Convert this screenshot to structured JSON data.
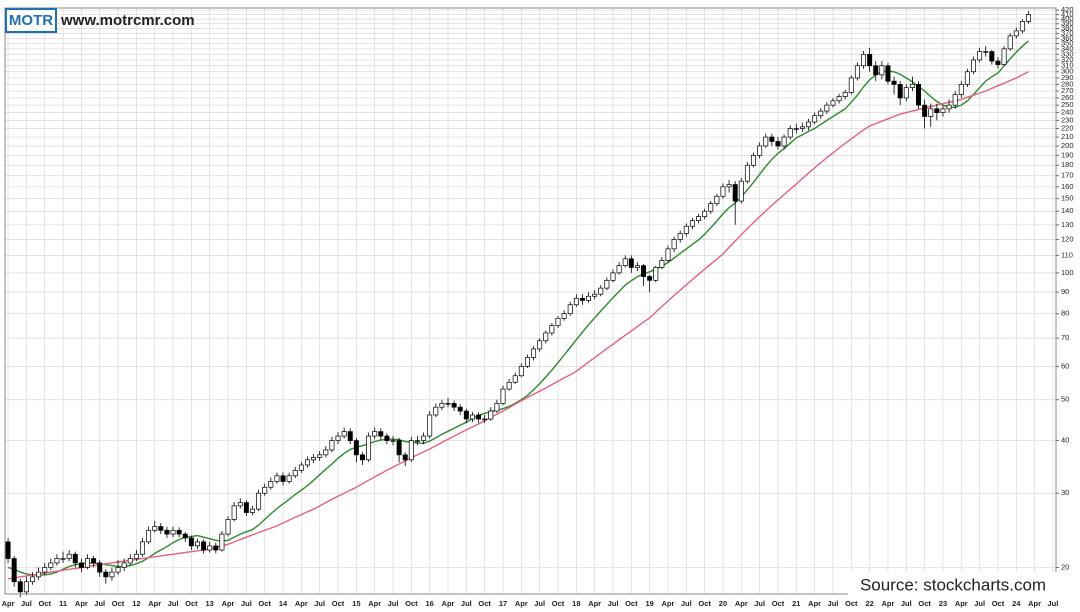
{
  "header": {
    "logo": "MOTR",
    "website": "www.motrcmr.com"
  },
  "source": "Source: stockcharts.com",
  "chart_data": {
    "type": "candlestick",
    "log_scale": true,
    "grid": true,
    "up_color": "#ffffff",
    "down_color": "#000000",
    "categories": [
      "Apr",
      null,
      null,
      "Jul",
      null,
      null,
      "Oct",
      null,
      null,
      "11",
      null,
      null,
      "Apr",
      null,
      null,
      "Jul",
      null,
      null,
      "Oct",
      null,
      null,
      "12",
      null,
      null,
      "Apr",
      null,
      null,
      "Jul",
      null,
      null,
      "Oct",
      null,
      null,
      "13",
      null,
      null,
      "Apr",
      null,
      null,
      "Jul",
      null,
      null,
      "Oct",
      null,
      null,
      "14",
      null,
      null,
      "Apr",
      null,
      null,
      "Jul",
      null,
      null,
      "Oct",
      null,
      null,
      "15",
      null,
      null,
      "Apr",
      null,
      null,
      "Jul",
      null,
      null,
      "Oct",
      null,
      null,
      "16",
      null,
      null,
      "Apr",
      null,
      null,
      "Jul",
      null,
      null,
      "Oct",
      null,
      null,
      "17",
      null,
      null,
      "Apr",
      null,
      null,
      "Jul",
      null,
      null,
      "Oct",
      null,
      null,
      "18",
      null,
      null,
      "Apr",
      null,
      null,
      "Jul",
      null,
      null,
      "Oct",
      null,
      null,
      "19",
      null,
      null,
      "Apr",
      null,
      null,
      "Jul",
      null,
      null,
      "Oct",
      null,
      null,
      "20",
      null,
      null,
      "Apr",
      null,
      null,
      "Jul",
      null,
      null,
      "Oct",
      null,
      null,
      "21",
      null,
      null,
      "Apr",
      null,
      null,
      "Jul",
      null,
      null,
      "Oct",
      null,
      null,
      "22",
      null,
      null,
      "Apr",
      null,
      null,
      "Jul",
      null,
      null,
      "Oct",
      null,
      null,
      "23",
      null,
      null,
      "Apr",
      null,
      null,
      "Jul",
      null,
      null,
      "Oct",
      null,
      null,
      "24",
      null,
      null,
      "Apr",
      null,
      null,
      "Jul"
    ],
    "open": [
      23,
      21,
      18.5,
      17.5,
      18.5,
      19,
      19.5,
      20,
      20.5,
      21,
      21,
      21.5,
      20.5,
      20,
      21,
      20.5,
      19.5,
      19,
      19.5,
      20,
      20.5,
      21,
      21.5,
      23,
      24.5,
      25,
      24.5,
      24,
      24.5,
      24,
      23.5,
      22.5,
      23,
      22,
      22.5,
      22,
      24,
      26,
      28,
      28.5,
      27,
      27.5,
      30,
      31,
      32,
      33,
      32,
      33,
      34,
      35,
      36,
      36.5,
      37,
      38,
      40,
      41,
      42,
      40,
      37,
      36,
      41,
      42,
      41,
      40,
      40,
      37,
      36,
      40,
      40,
      41,
      46,
      48,
      49,
      49,
      48,
      47,
      45,
      46,
      45,
      45,
      47,
      49,
      53,
      55,
      57,
      60,
      63,
      66,
      69,
      72,
      75,
      78,
      80,
      84,
      87,
      86,
      88,
      89,
      92,
      96,
      100,
      104,
      108,
      103,
      104,
      98,
      96,
      103,
      107,
      114,
      120,
      124,
      129,
      133,
      136,
      140,
      146,
      152,
      160,
      162,
      148,
      165,
      180,
      190,
      200,
      210,
      205,
      200,
      210,
      220,
      220,
      222,
      228,
      236,
      242,
      250,
      256,
      262,
      268,
      290,
      310,
      330,
      310,
      295,
      310,
      285,
      280,
      260,
      275,
      280,
      250,
      235,
      245,
      240,
      245,
      250,
      265,
      280,
      300,
      320,
      335,
      335,
      318,
      312,
      340,
      365,
      375,
      395,
      null,
      null,
      null,
      null
    ],
    "high": [
      23.5,
      21.3,
      18.8,
      19,
      19.5,
      20,
      20.5,
      21,
      21.5,
      21.8,
      22,
      21.8,
      21,
      21.5,
      21.3,
      20.8,
      19.8,
      20,
      20.8,
      21,
      21.5,
      22,
      23.5,
      25,
      25.8,
      25.5,
      25,
      25,
      24.9,
      24.3,
      23.8,
      23.4,
      23.3,
      23,
      22.9,
      24.4,
      26.5,
      28.6,
      29.2,
      28.9,
      28,
      30.6,
      31.6,
      32.7,
      33.6,
      33.6,
      33.6,
      34.6,
      35.6,
      36.7,
      37.2,
      37.8,
      38.8,
      40.8,
      41.9,
      43,
      42.8,
      40.6,
      37.6,
      41.8,
      43,
      42.8,
      41.6,
      41,
      40.6,
      37.5,
      40.8,
      41,
      41.8,
      47,
      49,
      50,
      50.5,
      49.8,
      48.8,
      47.6,
      46.8,
      46.7,
      46,
      48,
      50,
      54,
      56,
      58,
      61,
      64,
      67,
      70,
      73,
      76,
      79,
      81.5,
      85.5,
      89,
      89,
      90,
      91,
      93.5,
      97.5,
      102,
      106,
      110,
      110,
      106,
      105,
      99,
      104,
      109,
      116,
      122,
      126,
      131,
      135,
      138,
      142,
      148,
      154,
      163,
      166,
      165,
      168,
      183,
      193,
      204,
      214,
      214,
      210,
      213,
      224,
      226,
      227,
      232,
      240,
      246,
      254,
      260,
      266,
      272,
      294,
      316,
      336,
      342,
      318,
      318,
      315,
      292,
      285,
      280,
      292,
      285,
      258,
      252,
      252,
      250,
      258,
      270,
      285,
      305,
      326,
      342,
      345,
      338,
      325,
      345,
      370,
      382,
      400,
      418,
      null,
      null,
      null,
      null
    ],
    "low": [
      20.5,
      18,
      17,
      17.2,
      18.2,
      18.7,
      19.2,
      19.7,
      20.2,
      20.5,
      20.7,
      20,
      19.5,
      19.8,
      20,
      19,
      18.3,
      18.6,
      19.2,
      19.6,
      20.2,
      20.7,
      21.2,
      22.7,
      24.2,
      24,
      23.5,
      23.6,
      23.6,
      23,
      22,
      22.1,
      21.6,
      21.7,
      21.6,
      21.8,
      23.7,
      25.7,
      27.6,
      26.5,
      26.6,
      27.2,
      29.6,
      30.6,
      31.6,
      31.3,
      31.6,
      32.6,
      33.5,
      34.5,
      35.4,
      35.8,
      36.5,
      37.5,
      39.2,
      40.5,
      39.2,
      35.5,
      35,
      35.6,
      40.3,
      40.2,
      39.2,
      39,
      35.5,
      34.8,
      35.6,
      39,
      39.2,
      40.5,
      45.5,
      47.2,
      48,
      47,
      46,
      44,
      44.2,
      44,
      44,
      44.5,
      46.5,
      48.5,
      52.5,
      54.5,
      56.5,
      59.5,
      62,
      65,
      68,
      71,
      74,
      77,
      79,
      83,
      84,
      85,
      86.5,
      88,
      91,
      95,
      99,
      103,
      100,
      101,
      93,
      90,
      95,
      102,
      106,
      112,
      118,
      122,
      127,
      131,
      134,
      138,
      144,
      150,
      155,
      130,
      146,
      163,
      178,
      187,
      198,
      200,
      196,
      197,
      207,
      214,
      216,
      218,
      225,
      232,
      238,
      247,
      252,
      258,
      265,
      286,
      305,
      300,
      285,
      288,
      280,
      265,
      250,
      255,
      270,
      245,
      220,
      222,
      230,
      235,
      240,
      245,
      260,
      276,
      296,
      316,
      326,
      312,
      305,
      310,
      336,
      360,
      370,
      390,
      null,
      null,
      null,
      null
    ],
    "close": [
      21,
      18.5,
      17.5,
      18.5,
      19,
      19.5,
      20,
      20.5,
      21,
      21,
      21.5,
      20.5,
      20,
      21,
      20.5,
      19.5,
      19,
      19.5,
      20,
      20.5,
      21,
      21.5,
      23,
      24.5,
      25,
      24.5,
      24,
      24.5,
      24,
      23.5,
      22.5,
      23,
      22,
      22.5,
      22,
      24,
      26,
      28,
      28.5,
      27,
      27.5,
      30,
      31,
      32,
      33,
      32,
      33,
      34,
      35,
      36,
      36.5,
      37,
      38,
      40,
      41,
      42,
      40,
      37,
      36,
      41,
      42,
      41,
      40,
      40,
      37,
      36,
      40,
      40,
      41,
      46,
      48,
      49,
      49,
      48,
      47,
      45,
      46,
      45,
      45,
      47,
      49,
      53,
      55,
      57,
      60,
      63,
      66,
      69,
      72,
      75,
      78,
      80,
      84,
      87,
      86,
      88,
      89,
      92,
      96,
      100,
      104,
      108,
      103,
      104,
      98,
      96,
      103,
      107,
      114,
      120,
      124,
      129,
      133,
      136,
      140,
      146,
      152,
      160,
      162,
      148,
      165,
      180,
      190,
      200,
      210,
      205,
      200,
      210,
      220,
      220,
      222,
      228,
      236,
      242,
      250,
      256,
      262,
      268,
      290,
      310,
      330,
      310,
      295,
      310,
      285,
      280,
      260,
      275,
      280,
      250,
      235,
      245,
      240,
      245,
      250,
      265,
      280,
      300,
      320,
      335,
      335,
      318,
      312,
      340,
      365,
      375,
      395,
      410,
      null,
      null,
      null,
      null
    ],
    "lines": [
      {
        "color": "#2a8a2a",
        "values": [
          20,
          19.8,
          19.5,
          19.3,
          19.2,
          19.2,
          19.2,
          19.3,
          19.5,
          19.8,
          20.1,
          20.3,
          20.4,
          20.5,
          20.5,
          20.4,
          20.3,
          20.2,
          20.1,
          20.1,
          20.2,
          20.4,
          20.7,
          21.1,
          21.6,
          22,
          22.4,
          22.9,
          23.3,
          23.6,
          23.7,
          23.8,
          23.6,
          23.4,
          23.2,
          23.1,
          23.2,
          23.6,
          24,
          24.3,
          24.6,
          25.2,
          26,
          26.8,
          27.6,
          28.3,
          29,
          29.8,
          30.5,
          31.3,
          32.2,
          33.2,
          34.2,
          35.2,
          36.3,
          37.3,
          38.1,
          38.6,
          38.9,
          39.3,
          39.8,
          40.1,
          40.3,
          40.3,
          40.2,
          39.8,
          39.7,
          39.5,
          39.4,
          39.9,
          40.6,
          41.4,
          42.1,
          42.8,
          43.5,
          44.2,
          45.1,
          45.9,
          46.4,
          46.9,
          47.2,
          47.6,
          48.2,
          49,
          50,
          51.2,
          52.8,
          54.6,
          56.6,
          58.8,
          61.2,
          63.8,
          66.5,
          69.4,
          72.3,
          75.3,
          78.2,
          81.2,
          84.2,
          87.3,
          90.3,
          93.5,
          95.8,
          98,
          99.4,
          100.6,
          102,
          103.7,
          105.8,
          108.4,
          111.2,
          114,
          116.9,
          119.7,
          123.4,
          128,
          132.8,
          138,
          142.8,
          146.5,
          151.5,
          157.4,
          164,
          171.2,
          179,
          186,
          192.2,
          197,
          203,
          209,
          212.6,
          216.6,
          220,
          225,
          230,
          235,
          240,
          245,
          254,
          264,
          276,
          287,
          295,
          300,
          301,
          300,
          296,
          290,
          284,
          277,
          270,
          262,
          255,
          250,
          247,
          247,
          250,
          256,
          265,
          275,
          285,
          292,
          298,
          310,
          322,
          334,
          345,
          355,
          null,
          null,
          null,
          null
        ]
      },
      {
        "color": "#e8607e",
        "values": [
          18.8,
          18.9,
          19,
          19.1,
          19.2,
          19.3,
          19.4,
          19.5,
          19.6,
          19.7,
          19.8,
          19.9,
          20,
          20.1,
          20.2,
          20.3,
          20.4,
          20.5,
          20.6,
          20.7,
          20.8,
          20.9,
          21,
          21.1,
          21.2,
          21.3,
          21.4,
          21.5,
          21.6,
          21.7,
          21.8,
          21.9,
          22,
          22.1,
          22.3,
          22.5,
          22.7,
          23,
          23.3,
          23.6,
          23.9,
          24.2,
          24.5,
          24.8,
          25.1,
          25.5,
          25.9,
          26.3,
          26.7,
          27.1,
          27.5,
          28,
          28.5,
          29,
          29.5,
          30,
          30.5,
          31,
          31.6,
          32.2,
          32.8,
          33.4,
          34,
          34.6,
          35.2,
          35.8,
          36.4,
          37,
          37.6,
          38.2,
          38.9,
          39.6,
          40.3,
          41,
          41.7,
          42.4,
          43.1,
          43.8,
          44.6,
          45.4,
          46.2,
          47,
          47.9,
          48.8,
          49.7,
          50.6,
          51.5,
          52.4,
          53.3,
          54.3,
          55.3,
          56.3,
          57.3,
          58.4,
          59.9,
          61.4,
          62.9,
          64.5,
          66.1,
          67.7,
          69.4,
          71.1,
          72.8,
          74.6,
          76.4,
          78.2,
          80.7,
          83.2,
          85.8,
          88.4,
          91,
          93.7,
          96.4,
          99.2,
          102,
          104.9,
          107.8,
          110.8,
          114.9,
          119,
          123.2,
          127.4,
          131.6,
          135.9,
          140.2,
          144.6,
          149,
          153.4,
          157.9,
          162.4,
          167.4,
          172.4,
          177.4,
          182.5,
          187.6,
          192.7,
          197.8,
          202.9,
          208,
          213.2,
          218.4,
          223,
          226,
          229,
          232,
          235,
          238,
          240,
          242,
          244,
          246,
          248,
          250,
          252,
          254,
          256,
          258,
          261,
          264,
          267,
          270,
          274,
          278,
          282,
          286,
          290,
          295,
          300,
          null,
          null,
          null,
          null
        ]
      }
    ],
    "ylim": [
      17.3,
      425
    ],
    "yticks": [
      20,
      30,
      40,
      50,
      60,
      70,
      80,
      90,
      100,
      110,
      120,
      130,
      140,
      150,
      160,
      170,
      180,
      190,
      200,
      210,
      220,
      230,
      240,
      250,
      260,
      270,
      280,
      290,
      300,
      310,
      320,
      330,
      340,
      350,
      360,
      370,
      380,
      390,
      400,
      410,
      420
    ]
  }
}
